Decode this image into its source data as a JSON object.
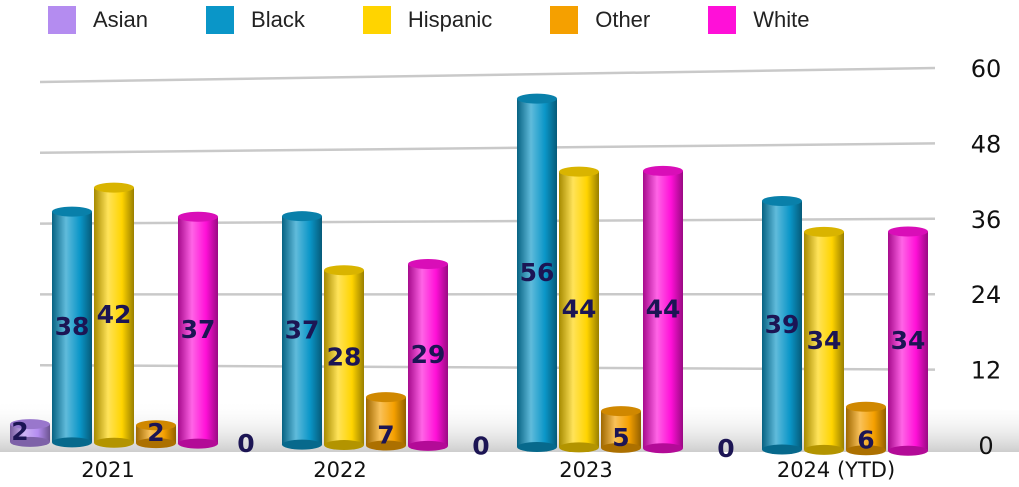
{
  "chart_data": {
    "type": "bar",
    "categories": [
      "2021",
      "2022",
      "2023",
      "2024 (YTD)"
    ],
    "series": [
      {
        "name": "Asian",
        "color": "#b48cf0",
        "values": [
          2,
          0,
          0,
          0
        ]
      },
      {
        "name": "Black",
        "color": "#0a96c8",
        "values": [
          38,
          37,
          56,
          39
        ]
      },
      {
        "name": "Hispanic",
        "color": "#ffd400",
        "values": [
          42,
          28,
          44,
          34
        ]
      },
      {
        "name": "Other",
        "color": "#f5a000",
        "values": [
          2,
          7,
          5,
          6
        ]
      },
      {
        "name": "White",
        "color": "#ff10d8",
        "values": [
          37,
          29,
          44,
          34
        ]
      }
    ],
    "yticks": [
      0,
      12,
      24,
      36,
      48,
      60
    ],
    "ylim": [
      0,
      60
    ],
    "grid": true,
    "legend_position": "top"
  }
}
